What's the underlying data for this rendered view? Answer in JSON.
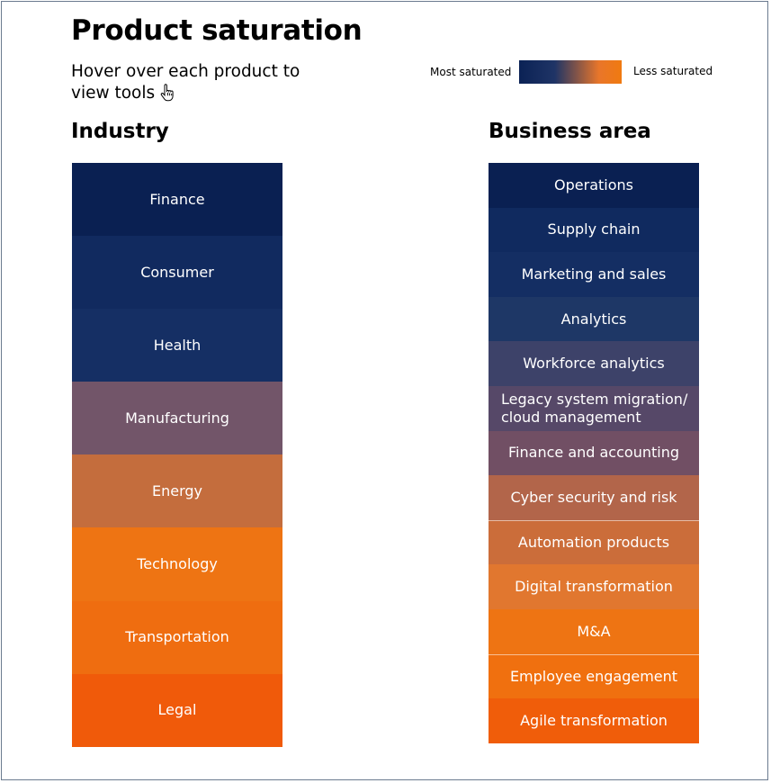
{
  "title": "Product saturation",
  "subtitle": "Hover over each product to view tools",
  "legend": {
    "most": "Most saturated",
    "less": "Less saturated",
    "gradient": [
      "#0b2255",
      "#1f3466",
      "#e9762a",
      "#f07a10"
    ]
  },
  "industry": {
    "heading": "Industry",
    "items": [
      {
        "label": "Finance",
        "color": "#0a2052"
      },
      {
        "label": "Consumer",
        "color": "#112a5f"
      },
      {
        "label": "Health",
        "color": "#152f64"
      },
      {
        "label": "Manufacturing",
        "color": "#725569"
      },
      {
        "label": "Energy",
        "color": "#c46d3d"
      },
      {
        "label": "Technology",
        "color": "#ee7413"
      },
      {
        "label": "Transportation",
        "color": "#ef6d10"
      },
      {
        "label": "Legal",
        "color": "#f05a0a"
      }
    ]
  },
  "business": {
    "heading": "Business area",
    "items": [
      {
        "label": "Operations",
        "color": "#0a2052"
      },
      {
        "label": "Supply chain",
        "color": "#102a5f"
      },
      {
        "label": "Marketing and sales",
        "color": "#142e63"
      },
      {
        "label": "Analytics",
        "color": "#1e3766"
      },
      {
        "label": "Workforce analytics",
        "color": "#3d4269"
      },
      {
        "label": "Legacy system migration/\ncloud management",
        "color": "#564868"
      },
      {
        "label": "Finance and accounting",
        "color": "#714f64"
      },
      {
        "label": "Cyber security and risk",
        "color": "#b2654a"
      },
      {
        "label": "Automation products",
        "color": "#cb6d3a"
      },
      {
        "label": "Digital transformation",
        "color": "#e1772f"
      },
      {
        "label": "M&A",
        "color": "#ee7413"
      },
      {
        "label": "Employee engagement",
        "color": "#f0700f"
      },
      {
        "label": "Agile transformation",
        "color": "#f05d0a"
      }
    ]
  }
}
